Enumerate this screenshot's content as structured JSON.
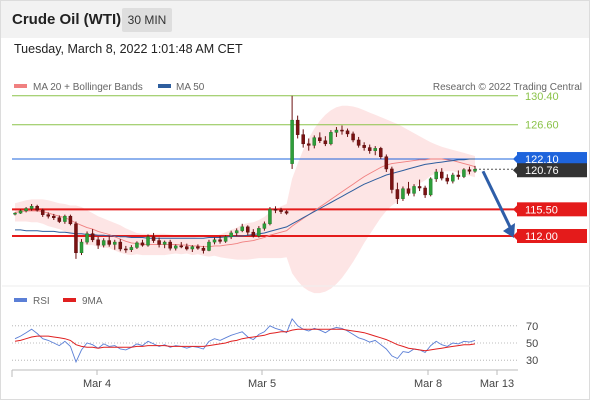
{
  "header": {
    "title": "Crude Oil (WTI)",
    "timeframe": "30 MIN",
    "datetime": "Tuesday, March 8, 2022 1:01:48 AM CET"
  },
  "legend": {
    "main": [
      {
        "label": "MA 20 + Bollinger Bands",
        "color": "#f08080"
      },
      {
        "label": "MA 50",
        "color": "#2e5e9e"
      }
    ],
    "credit": "Research © 2022 Trading Central",
    "rsi": [
      {
        "label": "RSI",
        "color": "#5b7fd6"
      },
      {
        "label": "9MA",
        "color": "#e02020"
      }
    ]
  },
  "levels": [
    {
      "value": "130.40",
      "type": "resistance-thin",
      "color": "#8bc34a"
    },
    {
      "value": "126.60",
      "type": "resistance-thin",
      "color": "#8bc34a"
    },
    {
      "value": "122.10",
      "type": "pivot",
      "color": "#1e64dc"
    },
    {
      "value": "120.76",
      "type": "last-price",
      "color": "#333333"
    },
    {
      "value": "115.50",
      "type": "support",
      "color": "#e41b1b"
    },
    {
      "value": "112.00",
      "type": "support",
      "color": "#e41b1b"
    }
  ],
  "rsi_ticks": [
    "70",
    "50",
    "30"
  ],
  "x_ticks": [
    "Mar 4",
    "Mar 5",
    "Mar 8",
    "Mar 13"
  ],
  "chart_data": {
    "type": "candlestick",
    "title": "Crude Oil (WTI)",
    "timeframe": "30 MIN",
    "ylim": [
      108,
      132
    ],
    "x": [
      "Mar 4",
      "Mar 5",
      "Mar 8",
      "Mar 13"
    ],
    "price_levels": [
      130.4,
      126.6,
      122.1,
      115.5,
      112.0
    ],
    "last_price": 120.76,
    "projection": {
      "from": 120.76,
      "to": 112.0,
      "direction": "down"
    },
    "candles": [
      [
        115.0,
        115.1,
        114.7,
        115.0
      ],
      [
        115.0,
        115.5,
        114.9,
        115.3
      ],
      [
        115.3,
        115.8,
        115.1,
        115.6
      ],
      [
        115.6,
        116.2,
        115.3,
        115.9
      ],
      [
        115.9,
        116.1,
        115.2,
        115.4
      ],
      [
        115.4,
        115.6,
        114.5,
        114.8
      ],
      [
        114.8,
        115.1,
        114.3,
        114.6
      ],
      [
        114.6,
        114.9,
        114.1,
        114.4
      ],
      [
        114.4,
        114.7,
        113.7,
        113.9
      ],
      [
        113.9,
        114.8,
        113.6,
        114.6
      ],
      [
        114.6,
        114.8,
        113.4,
        113.6
      ],
      [
        113.6,
        113.9,
        109.0,
        109.8
      ],
      [
        109.8,
        111.6,
        109.5,
        111.2
      ],
      [
        111.2,
        112.6,
        110.9,
        112.3
      ],
      [
        112.3,
        112.9,
        111.2,
        111.5
      ],
      [
        111.5,
        111.9,
        110.3,
        110.8
      ],
      [
        110.8,
        111.7,
        110.5,
        111.4
      ],
      [
        111.4,
        112.0,
        110.6,
        110.9
      ],
      [
        110.9,
        111.5,
        110.2,
        111.2
      ],
      [
        111.2,
        111.6,
        110.0,
        110.3
      ],
      [
        110.3,
        110.7,
        109.8,
        110.2
      ],
      [
        110.2,
        110.8,
        109.9,
        110.5
      ],
      [
        110.5,
        111.3,
        110.3,
        111.1
      ],
      [
        111.1,
        111.5,
        110.6,
        110.8
      ],
      [
        110.8,
        112.2,
        110.6,
        111.9
      ],
      [
        111.9,
        112.4,
        111.1,
        111.4
      ],
      [
        111.4,
        111.8,
        110.5,
        110.9
      ],
      [
        110.9,
        111.4,
        110.4,
        111.2
      ],
      [
        111.2,
        111.5,
        110.1,
        110.4
      ],
      [
        110.4,
        110.9,
        110.1,
        110.7
      ],
      [
        110.7,
        111.2,
        110.4,
        110.6
      ],
      [
        110.6,
        111.0,
        110.1,
        110.3
      ],
      [
        110.3,
        110.8,
        109.9,
        110.6
      ],
      [
        110.6,
        110.9,
        110.2,
        110.4
      ],
      [
        110.4,
        110.7,
        109.7,
        110.1
      ],
      [
        110.1,
        111.5,
        110.0,
        111.2
      ],
      [
        111.2,
        111.8,
        110.9,
        111.5
      ],
      [
        111.5,
        112.0,
        111.0,
        111.3
      ],
      [
        111.3,
        112.1,
        111.1,
        111.9
      ],
      [
        111.9,
        112.7,
        111.6,
        112.4
      ],
      [
        112.4,
        113.0,
        112.0,
        112.7
      ],
      [
        112.7,
        113.6,
        112.5,
        113.2
      ],
      [
        113.2,
        113.4,
        112.1,
        112.5
      ],
      [
        112.5,
        112.9,
        111.8,
        112.0
      ],
      [
        112.0,
        113.3,
        111.8,
        113.0
      ],
      [
        113.0,
        113.9,
        112.7,
        113.6
      ],
      [
        113.6,
        115.8,
        113.4,
        115.5
      ],
      [
        115.5,
        115.9,
        115.0,
        115.4
      ],
      [
        115.4,
        115.7,
        114.9,
        115.2
      ],
      [
        115.2,
        115.4,
        114.8,
        115.0
      ],
      [
        121.5,
        130.4,
        120.8,
        127.2
      ],
      [
        127.2,
        127.8,
        124.8,
        125.3
      ],
      [
        125.3,
        126.0,
        123.6,
        124.1
      ],
      [
        124.1,
        124.8,
        123.2,
        123.9
      ],
      [
        123.9,
        125.2,
        123.5,
        124.9
      ],
      [
        124.9,
        125.6,
        124.2,
        124.5
      ],
      [
        124.5,
        125.1,
        123.8,
        124.1
      ],
      [
        124.1,
        125.9,
        123.9,
        125.6
      ],
      [
        125.6,
        126.3,
        125.0,
        125.9
      ],
      [
        125.9,
        126.5,
        125.3,
        125.8
      ],
      [
        125.8,
        126.1,
        125.0,
        125.4
      ],
      [
        125.4,
        125.7,
        124.3,
        124.6
      ],
      [
        124.6,
        125.0,
        123.6,
        123.9
      ],
      [
        123.9,
        124.3,
        123.2,
        123.6
      ],
      [
        123.6,
        124.0,
        122.8,
        123.2
      ],
      [
        123.2,
        123.8,
        122.6,
        123.5
      ],
      [
        123.5,
        123.7,
        122.1,
        122.4
      ],
      [
        122.4,
        122.7,
        120.4,
        120.8
      ],
      [
        120.8,
        121.1,
        117.6,
        118.1
      ],
      [
        118.1,
        119.0,
        116.2,
        116.9
      ],
      [
        116.9,
        118.5,
        116.6,
        118.2
      ],
      [
        118.2,
        119.1,
        117.3,
        117.6
      ],
      [
        117.6,
        118.8,
        117.2,
        118.5
      ],
      [
        118.5,
        119.4,
        117.9,
        118.3
      ],
      [
        118.3,
        118.6,
        117.0,
        117.4
      ],
      [
        117.4,
        119.7,
        117.2,
        119.5
      ],
      [
        119.5,
        120.8,
        119.1,
        120.4
      ],
      [
        120.4,
        120.9,
        119.3,
        119.6
      ],
      [
        119.6,
        120.1,
        118.8,
        119.2
      ],
      [
        119.2,
        120.3,
        118.9,
        120.0
      ],
      [
        120.0,
        120.6,
        119.4,
        119.8
      ],
      [
        119.8,
        120.9,
        119.6,
        120.7
      ],
      [
        120.7,
        121.1,
        120.1,
        120.5
      ],
      [
        120.5,
        121.2,
        120.3,
        120.76
      ]
    ],
    "rsi": [
      55,
      58,
      62,
      66,
      61,
      55,
      53,
      50,
      47,
      52,
      46,
      28,
      42,
      50,
      48,
      44,
      49,
      46,
      47,
      43,
      42,
      45,
      49,
      47,
      52,
      49,
      46,
      48,
      45,
      47,
      46,
      44,
      46,
      45,
      43,
      52,
      55,
      53,
      56,
      59,
      61,
      63,
      57,
      54,
      60,
      63,
      70,
      67,
      65,
      62,
      78,
      70,
      66,
      64,
      67,
      65,
      62,
      66,
      68,
      67,
      64,
      60,
      56,
      54,
      51,
      53,
      48,
      43,
      35,
      32,
      40,
      39,
      43,
      42,
      39,
      47,
      52,
      48,
      46,
      50,
      49,
      52,
      51,
      53
    ],
    "rsi_ma": [
      52,
      53,
      55,
      57,
      58,
      58,
      58,
      57,
      56,
      55,
      53,
      48,
      46,
      45,
      45,
      44,
      45,
      45,
      45,
      45,
      45,
      45,
      46,
      46,
      47,
      47,
      47,
      47,
      46,
      46,
      46,
      46,
      46,
      46,
      46,
      47,
      48,
      49,
      50,
      52,
      53,
      55,
      56,
      57,
      58,
      59,
      61,
      62,
      63,
      63,
      65,
      66,
      66,
      66,
      66,
      66,
      66,
      66,
      66,
      66,
      65,
      64,
      63,
      62,
      60,
      58,
      56,
      54,
      51,
      48,
      46,
      44,
      43,
      42,
      41,
      42,
      43,
      44,
      45,
      46,
      47,
      48,
      48,
      49
    ],
    "ma20": [
      115.1,
      115.2,
      115.3,
      115.3,
      115.3,
      115.2,
      115.0,
      114.8,
      114.6,
      114.4,
      114.1,
      113.7,
      113.4,
      113.1,
      112.9,
      112.6,
      112.4,
      112.2,
      111.9,
      111.6,
      111.3,
      111.1,
      111.0,
      110.9,
      110.9,
      110.9,
      110.9,
      110.9,
      110.9,
      110.9,
      110.8,
      110.8,
      110.7,
      110.7,
      110.6,
      110.6,
      110.7,
      110.7,
      110.8,
      110.9,
      111.0,
      111.2,
      111.3,
      111.4,
      111.6,
      111.8,
      112.1,
      112.3,
      112.5,
      112.7,
      113.3,
      113.8,
      114.3,
      114.8,
      115.3,
      115.8,
      116.3,
      116.8,
      117.3,
      117.8,
      118.3,
      118.8,
      119.3,
      119.8,
      120.2,
      120.6,
      121.0,
      121.3,
      121.5,
      121.6,
      121.7,
      121.8,
      121.9,
      122.0,
      122.0,
      122.1,
      122.1,
      122.1,
      122.0,
      121.9,
      121.7,
      121.5,
      121.3,
      121.1
    ],
    "ma50": [
      112.8,
      112.8,
      112.7,
      112.7,
      112.7,
      112.6,
      112.6,
      112.6,
      112.5,
      112.5,
      112.4,
      112.3,
      112.3,
      112.2,
      112.2,
      112.1,
      112.1,
      112.0,
      112.0,
      111.9,
      111.9,
      111.8,
      111.8,
      111.8,
      111.7,
      111.7,
      111.7,
      111.7,
      111.7,
      111.7,
      111.7,
      111.7,
      111.7,
      111.7,
      111.7,
      111.8,
      111.8,
      111.8,
      111.9,
      111.9,
      112.0,
      112.0,
      112.1,
      112.2,
      112.3,
      112.4,
      112.6,
      112.8,
      113.0,
      113.2,
      113.6,
      114.0,
      114.4,
      114.8,
      115.2,
      115.6,
      116.0,
      116.4,
      116.8,
      117.2,
      117.6,
      118.0,
      118.4,
      118.8,
      119.1,
      119.4,
      119.7,
      120.0,
      120.2,
      120.4,
      120.6,
      120.8,
      121.0,
      121.2,
      121.4,
      121.5,
      121.6,
      121.7,
      121.8,
      121.9,
      122.0,
      122.0,
      122.1,
      122.1
    ],
    "bb_upper": [
      116.3,
      116.5,
      116.7,
      116.8,
      116.8,
      116.8,
      116.7,
      116.5,
      116.3,
      116.2,
      116.0,
      116.0,
      115.8,
      115.4,
      115.0,
      114.6,
      114.3,
      114.0,
      113.7,
      113.4,
      113.0,
      112.7,
      112.4,
      112.3,
      112.3,
      112.3,
      112.3,
      112.3,
      112.2,
      112.1,
      112.0,
      111.9,
      111.9,
      111.8,
      111.8,
      111.9,
      112.0,
      112.2,
      112.5,
      112.8,
      113.1,
      113.5,
      113.7,
      113.8,
      114.1,
      114.5,
      115.1,
      115.5,
      115.9,
      116.2,
      119.5,
      121.5,
      123.3,
      124.8,
      126.1,
      127.1,
      127.9,
      128.5,
      128.9,
      129.1,
      129.1,
      129.0,
      128.8,
      128.5,
      128.2,
      127.9,
      127.6,
      127.3,
      127.0,
      126.7,
      126.3,
      125.9,
      125.5,
      125.1,
      124.7,
      124.3,
      124.0,
      123.7,
      123.5,
      123.3,
      123.1,
      122.9,
      122.7,
      122.5
    ],
    "bb_lower": [
      113.9,
      113.9,
      113.9,
      113.8,
      113.8,
      113.6,
      113.3,
      113.1,
      112.9,
      112.6,
      112.2,
      111.4,
      111.0,
      110.8,
      110.8,
      110.6,
      110.5,
      110.4,
      110.1,
      109.8,
      109.6,
      109.5,
      109.6,
      109.5,
      109.5,
      109.5,
      109.5,
      109.5,
      109.6,
      109.7,
      109.6,
      109.7,
      109.5,
      109.6,
      109.4,
      109.3,
      109.4,
      109.2,
      109.1,
      109.0,
      108.9,
      108.9,
      108.9,
      109.0,
      109.1,
      109.1,
      109.1,
      109.1,
      109.1,
      109.2,
      107.1,
      106.1,
      105.3,
      104.8,
      104.5,
      104.5,
      104.7,
      105.1,
      105.7,
      106.5,
      107.5,
      108.6,
      109.8,
      111.1,
      112.2,
      113.3,
      114.4,
      115.3,
      116.0,
      116.5,
      117.1,
      117.7,
      118.3,
      118.9,
      119.3,
      119.9,
      120.2,
      120.5,
      120.5,
      120.5,
      120.3,
      120.1,
      119.9,
      119.7
    ]
  }
}
